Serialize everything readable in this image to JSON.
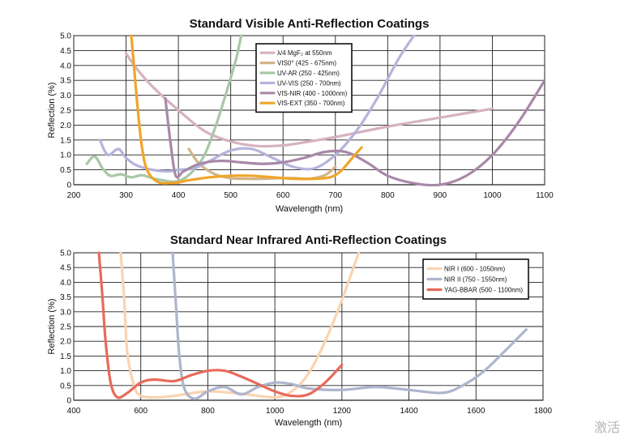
{
  "chart_data": [
    {
      "type": "line",
      "title": "Standard Visible Anti-Reflection Coatings",
      "xlabel": "Wavelength (nm)",
      "ylabel": "Reflection (%)",
      "xlim": [
        200,
        1100
      ],
      "ylim": [
        0,
        5
      ],
      "xticks": [
        200,
        300,
        400,
        500,
        600,
        700,
        800,
        900,
        1000,
        1100
      ],
      "yticks": [
        0,
        0.5,
        1.0,
        1.5,
        2.0,
        2.5,
        3.0,
        3.5,
        4.0,
        4.5,
        5.0
      ],
      "ytick_labels": [
        "0",
        "0.5",
        "1.0",
        "1.5",
        "2.0",
        "2.5",
        "3.0",
        "3.5",
        "4.0",
        "4.5",
        "5.0"
      ],
      "grid": true,
      "legend_position": "top-center",
      "series": [
        {
          "name": "λ/4 MgF₂ at 550nm",
          "color": "#d6b2c0",
          "x": [
            300,
            320,
            350,
            400,
            450,
            500,
            550,
            600,
            650,
            700,
            800,
            900,
            1000
          ],
          "y": [
            4.4,
            3.9,
            3.3,
            2.5,
            1.8,
            1.45,
            1.3,
            1.32,
            1.45,
            1.6,
            1.95,
            2.25,
            2.55
          ]
        },
        {
          "name": "VIS0° (425 - 675nm)",
          "color": "#d1b48a",
          "x": [
            420,
            440,
            470,
            500,
            530,
            560,
            590,
            620,
            650,
            680,
            700
          ],
          "y": [
            1.2,
            0.7,
            0.35,
            0.22,
            0.2,
            0.2,
            0.22,
            0.22,
            0.2,
            0.32,
            0.6
          ]
        },
        {
          "name": "UV-AR (250 - 425nm)",
          "color": "#a9c7a7",
          "x": [
            225,
            240,
            255,
            270,
            290,
            310,
            330,
            350,
            370,
            390,
            410,
            430,
            450,
            470,
            490,
            510,
            520
          ],
          "y": [
            0.7,
            0.95,
            0.55,
            0.3,
            0.35,
            0.25,
            0.32,
            0.22,
            0.15,
            0.1,
            0.2,
            0.5,
            1.0,
            1.9,
            3.0,
            4.2,
            5.0
          ]
        },
        {
          "name": "UV-VIS (250 - 700nm)",
          "color": "#b4b4dc",
          "x": [
            250,
            265,
            285,
            300,
            320,
            350,
            380,
            400,
            430,
            460,
            500,
            540,
            580,
            620,
            660,
            700,
            740,
            780,
            820,
            850
          ],
          "y": [
            1.5,
            1.0,
            1.2,
            0.9,
            0.65,
            0.5,
            0.45,
            0.5,
            0.55,
            0.8,
            1.15,
            1.2,
            0.9,
            0.6,
            0.55,
            1.0,
            1.8,
            2.9,
            4.2,
            5.0
          ]
        },
        {
          "name": "VIS-NIR (400 - 1000nm)",
          "color": "#a889a8",
          "x": [
            375,
            385,
            395,
            410,
            440,
            480,
            520,
            560,
            600,
            640,
            680,
            720,
            760,
            800,
            850,
            900,
            950,
            1000,
            1050,
            1100
          ],
          "y": [
            2.9,
            1.4,
            0.3,
            0.45,
            0.7,
            0.8,
            0.75,
            0.7,
            0.75,
            0.9,
            1.1,
            1.1,
            0.75,
            0.3,
            0.05,
            0.0,
            0.3,
            1.0,
            2.1,
            3.5
          ]
        },
        {
          "name": "VIS-EXT (350 - 700nm)",
          "color": "#f0a52a",
          "x": [
            310,
            315,
            322,
            330,
            340,
            360,
            390,
            420,
            460,
            500,
            540,
            580,
            620,
            660,
            690,
            710,
            730,
            750
          ],
          "y": [
            5.0,
            4.0,
            2.6,
            1.3,
            0.5,
            0.1,
            0.06,
            0.15,
            0.25,
            0.3,
            0.3,
            0.25,
            0.2,
            0.2,
            0.25,
            0.45,
            0.85,
            1.25
          ]
        }
      ]
    },
    {
      "type": "line",
      "title": "Standard Near Infrared Anti-Reflection Coatings",
      "xlabel": "Wavelength (nm)",
      "ylabel": "Reflection (%)",
      "xlim": [
        400,
        1800
      ],
      "ylim": [
        0,
        5
      ],
      "xticks": [
        400,
        600,
        800,
        1000,
        1200,
        1400,
        1600,
        1800
      ],
      "yticks": [
        0,
        0.5,
        1.0,
        1.5,
        2.0,
        2.5,
        3.0,
        3.5,
        4.0,
        4.5,
        5.0
      ],
      "ytick_labels": [
        "0",
        "0.5",
        "1.0",
        "1.5",
        "2.0",
        "2.5",
        "3.0",
        "3.5",
        "4.0",
        "4.5",
        "5.0"
      ],
      "grid": true,
      "legend_position": "top-right",
      "series": [
        {
          "name": "NIR I (600 - 1050nm)",
          "color": "#f9d3b2",
          "x": [
            540,
            550,
            560,
            580,
            600,
            650,
            700,
            800,
            900,
            1000,
            1050,
            1100,
            1150,
            1200,
            1250
          ],
          "y": [
            5.0,
            3.5,
            1.6,
            0.5,
            0.15,
            0.1,
            0.15,
            0.3,
            0.22,
            0.1,
            0.3,
            0.9,
            2.0,
            3.4,
            5.0
          ]
        },
        {
          "name": "NIR II (750 - 1550nm)",
          "color": "#aeb5cd",
          "x": [
            695,
            705,
            715,
            730,
            760,
            800,
            850,
            900,
            950,
            1000,
            1050,
            1100,
            1200,
            1300,
            1400,
            1500,
            1560,
            1620,
            1680,
            1750
          ],
          "y": [
            5.0,
            3.2,
            1.5,
            0.4,
            0.05,
            0.3,
            0.45,
            0.2,
            0.45,
            0.6,
            0.55,
            0.4,
            0.35,
            0.45,
            0.35,
            0.25,
            0.5,
            0.95,
            1.6,
            2.4
          ]
        },
        {
          "name": "YAG-BBAR (500 - 1100nm)",
          "color": "#e86a5a",
          "x": [
            475,
            485,
            495,
            510,
            530,
            560,
            600,
            640,
            700,
            750,
            800,
            850,
            900,
            950,
            1000,
            1050,
            1100,
            1150,
            1200
          ],
          "y": [
            5.0,
            3.6,
            2.0,
            0.6,
            0.1,
            0.25,
            0.6,
            0.7,
            0.65,
            0.85,
            1.0,
            1.0,
            0.8,
            0.55,
            0.3,
            0.15,
            0.2,
            0.6,
            1.2
          ]
        }
      ]
    }
  ],
  "watermark": {
    "text": "激活 "
  }
}
